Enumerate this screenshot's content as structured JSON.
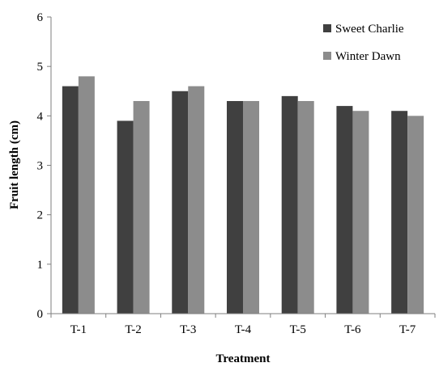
{
  "chart_data": {
    "type": "bar",
    "title": "",
    "xlabel": "Treatment",
    "ylabel": "Fruit length (cm)",
    "categories": [
      "T-1",
      "T-2",
      "T-3",
      "T-4",
      "T-5",
      "T-6",
      "T-7"
    ],
    "ylim": [
      0,
      6
    ],
    "yticks": [
      "0",
      "1",
      "2",
      "3",
      "4",
      "5",
      "6"
    ],
    "grid": false,
    "legend_position": "top-right",
    "series": [
      {
        "name": "Sweet Charlie",
        "color": "#404040",
        "values": [
          4.6,
          3.9,
          4.5,
          4.3,
          4.4,
          4.2,
          4.1
        ]
      },
      {
        "name": "Winter Dawn",
        "color": "#8c8c8c",
        "values": [
          4.8,
          4.3,
          4.6,
          4.3,
          4.3,
          4.1,
          4.0
        ]
      }
    ]
  }
}
